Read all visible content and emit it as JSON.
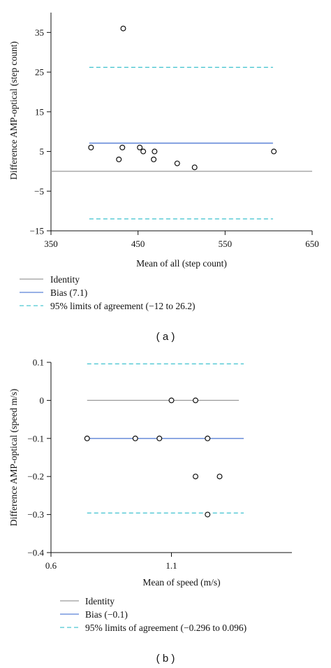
{
  "colors": {
    "axis": "#111111",
    "identity": "#9a9a9a",
    "bias": "#5b82d6",
    "limits": "#4cc6d2",
    "point": "#111111"
  },
  "chart_data": [
    {
      "panel_label": "( a )",
      "type": "scatter",
      "xlabel": "Mean of all (step count)",
      "ylabel": "Difference AMP-optical (step count)",
      "xlim": [
        350,
        650
      ],
      "ylim": [
        -15,
        40
      ],
      "xticks": [
        350,
        450,
        550,
        650
      ],
      "xtick_labels": [
        "350",
        "450",
        "550",
        "650"
      ],
      "yticks": [
        -15,
        -5,
        5,
        15,
        25,
        35
      ],
      "ytick_labels": [
        "−15",
        "−5",
        "5",
        "15",
        "25",
        "35"
      ],
      "identity": 0,
      "bias": 7.1,
      "limits": [
        -12,
        26.2
      ],
      "line_x_range": [
        394,
        605
      ],
      "identity_x_range": [
        350,
        650
      ],
      "legend": {
        "position": "bottom",
        "identity": "Identity",
        "bias": "Bias (7.1)",
        "limits": "95% limits of agreement (−12 to 26.2)"
      },
      "points": [
        {
          "x": 396,
          "y": 6
        },
        {
          "x": 428,
          "y": 3
        },
        {
          "x": 432,
          "y": 6
        },
        {
          "x": 433,
          "y": 36
        },
        {
          "x": 452,
          "y": 6
        },
        {
          "x": 456,
          "y": 5
        },
        {
          "x": 468,
          "y": 3
        },
        {
          "x": 469,
          "y": 5
        },
        {
          "x": 495,
          "y": 2
        },
        {
          "x": 515,
          "y": 1
        },
        {
          "x": 606,
          "y": 5
        }
      ]
    },
    {
      "panel_label": "( b )",
      "type": "scatter",
      "xlabel": "Mean of speed (m/s)",
      "ylabel": "Difference AMP-optical (speed m/s)",
      "xlim": [
        0.6,
        1.6
      ],
      "ylim": [
        -0.4,
        0.1
      ],
      "xticks": [
        0.6,
        1.1
      ],
      "xtick_labels": [
        "0.6",
        "1.1"
      ],
      "yticks": [
        -0.4,
        -0.3,
        -0.2,
        -0.1,
        0,
        0.1
      ],
      "ytick_labels": [
        "−0.4",
        "−0.3",
        "−0.2",
        "−0.1",
        "0",
        "0.1"
      ],
      "identity": 0,
      "bias": -0.1,
      "limits": [
        -0.296,
        0.096
      ],
      "line_x_range": [
        0.75,
        1.4
      ],
      "identity_x_range": [
        0.75,
        1.38
      ],
      "legend": {
        "position": "bottom",
        "identity": "Identity",
        "bias": "Bias (−0.1)",
        "limits": "95% limits of agreement (−0.296 to 0.096)"
      },
      "points": [
        {
          "x": 0.75,
          "y": -0.1
        },
        {
          "x": 0.95,
          "y": -0.1
        },
        {
          "x": 1.05,
          "y": -0.1
        },
        {
          "x": 1.1,
          "y": 0
        },
        {
          "x": 1.2,
          "y": 0
        },
        {
          "x": 1.2,
          "y": -0.2
        },
        {
          "x": 1.25,
          "y": -0.1
        },
        {
          "x": 1.25,
          "y": -0.3
        },
        {
          "x": 1.3,
          "y": -0.2
        }
      ]
    }
  ]
}
